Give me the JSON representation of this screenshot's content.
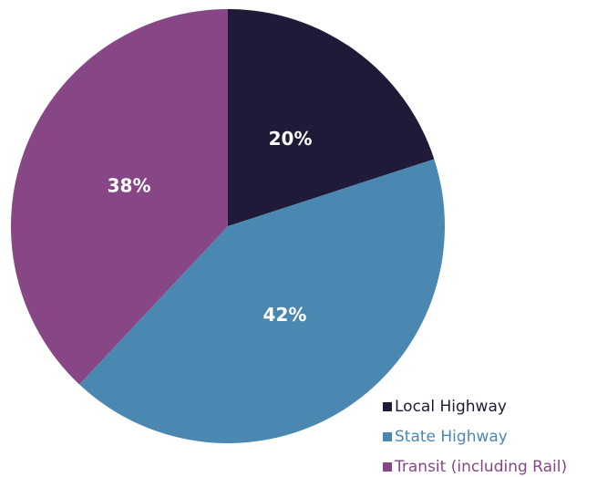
{
  "chart_data": {
    "type": "pie",
    "categories": [
      "Local Highway",
      "State Highway",
      "Transit (including Rail)"
    ],
    "values": [
      20,
      42,
      38
    ],
    "value_labels": [
      "20%",
      "42%",
      "38%"
    ],
    "colors": [
      "#1f1a37",
      "#4a88b2",
      "#874786"
    ],
    "legend": "lower right"
  }
}
